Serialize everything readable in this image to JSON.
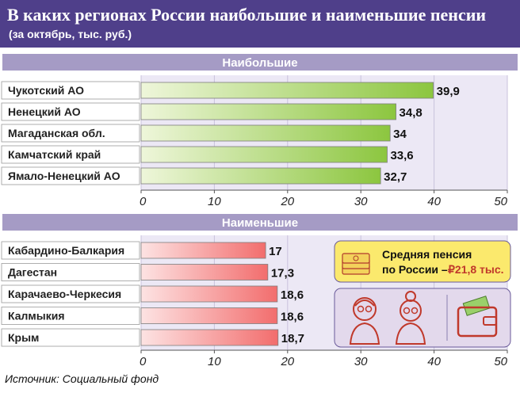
{
  "title": "В каких регионах России наибольшие и наименьшие пенсии",
  "subtitle": "(за октябрь, тыс. руб.)",
  "source": "Источник: Социальный фонд",
  "colors": {
    "header": "#4f3f8a",
    "section_band": "#a59bc5",
    "plot_background": "#ece8f5",
    "bar_green": "#8cc63f",
    "bar_red": "#f26d6d",
    "note_fill": "#fbe96d",
    "picture_fill": "#e3d9ec",
    "icon_red": "#c0392b"
  },
  "info": {
    "avg_label_line1": "Средняя пенсия",
    "avg_label_line2": "по России –",
    "avg_value": "₽21,8 тыс.",
    "icons": [
      "money-stack-icon",
      "elderly-man-icon",
      "elderly-woman-icon",
      "wallet-icon"
    ]
  },
  "chart_data": [
    {
      "type": "bar",
      "orientation": "horizontal",
      "title": "Наибольшие",
      "categories": [
        "Чукотский АО",
        "Ненецкий АО",
        "Магаданская обл.",
        "Камчатский край",
        "Ямало-Ненецкий АО"
      ],
      "values": [
        39.9,
        34.8,
        34,
        33.6,
        32.7
      ],
      "value_labels": [
        "39,9",
        "34,8",
        "34",
        "33,6",
        "32,7"
      ],
      "xlim": [
        0,
        50
      ],
      "xticks": [
        "0",
        "10",
        "20",
        "30",
        "40",
        "50"
      ],
      "grid": true
    },
    {
      "type": "bar",
      "orientation": "horizontal",
      "title": "Наименьшие",
      "categories": [
        "Кабардино-Балкария",
        "Дагестан",
        "Карачаево-Черкесия",
        "Калмыкия",
        "Крым"
      ],
      "values": [
        17,
        17.3,
        18.6,
        18.6,
        18.7
      ],
      "value_labels": [
        "17",
        "17,3",
        "18,6",
        "18,6",
        "18,7"
      ],
      "xlim": [
        0,
        50
      ],
      "xticks": [
        "0",
        "10",
        "20",
        "30",
        "40",
        "50"
      ],
      "grid": true
    }
  ]
}
